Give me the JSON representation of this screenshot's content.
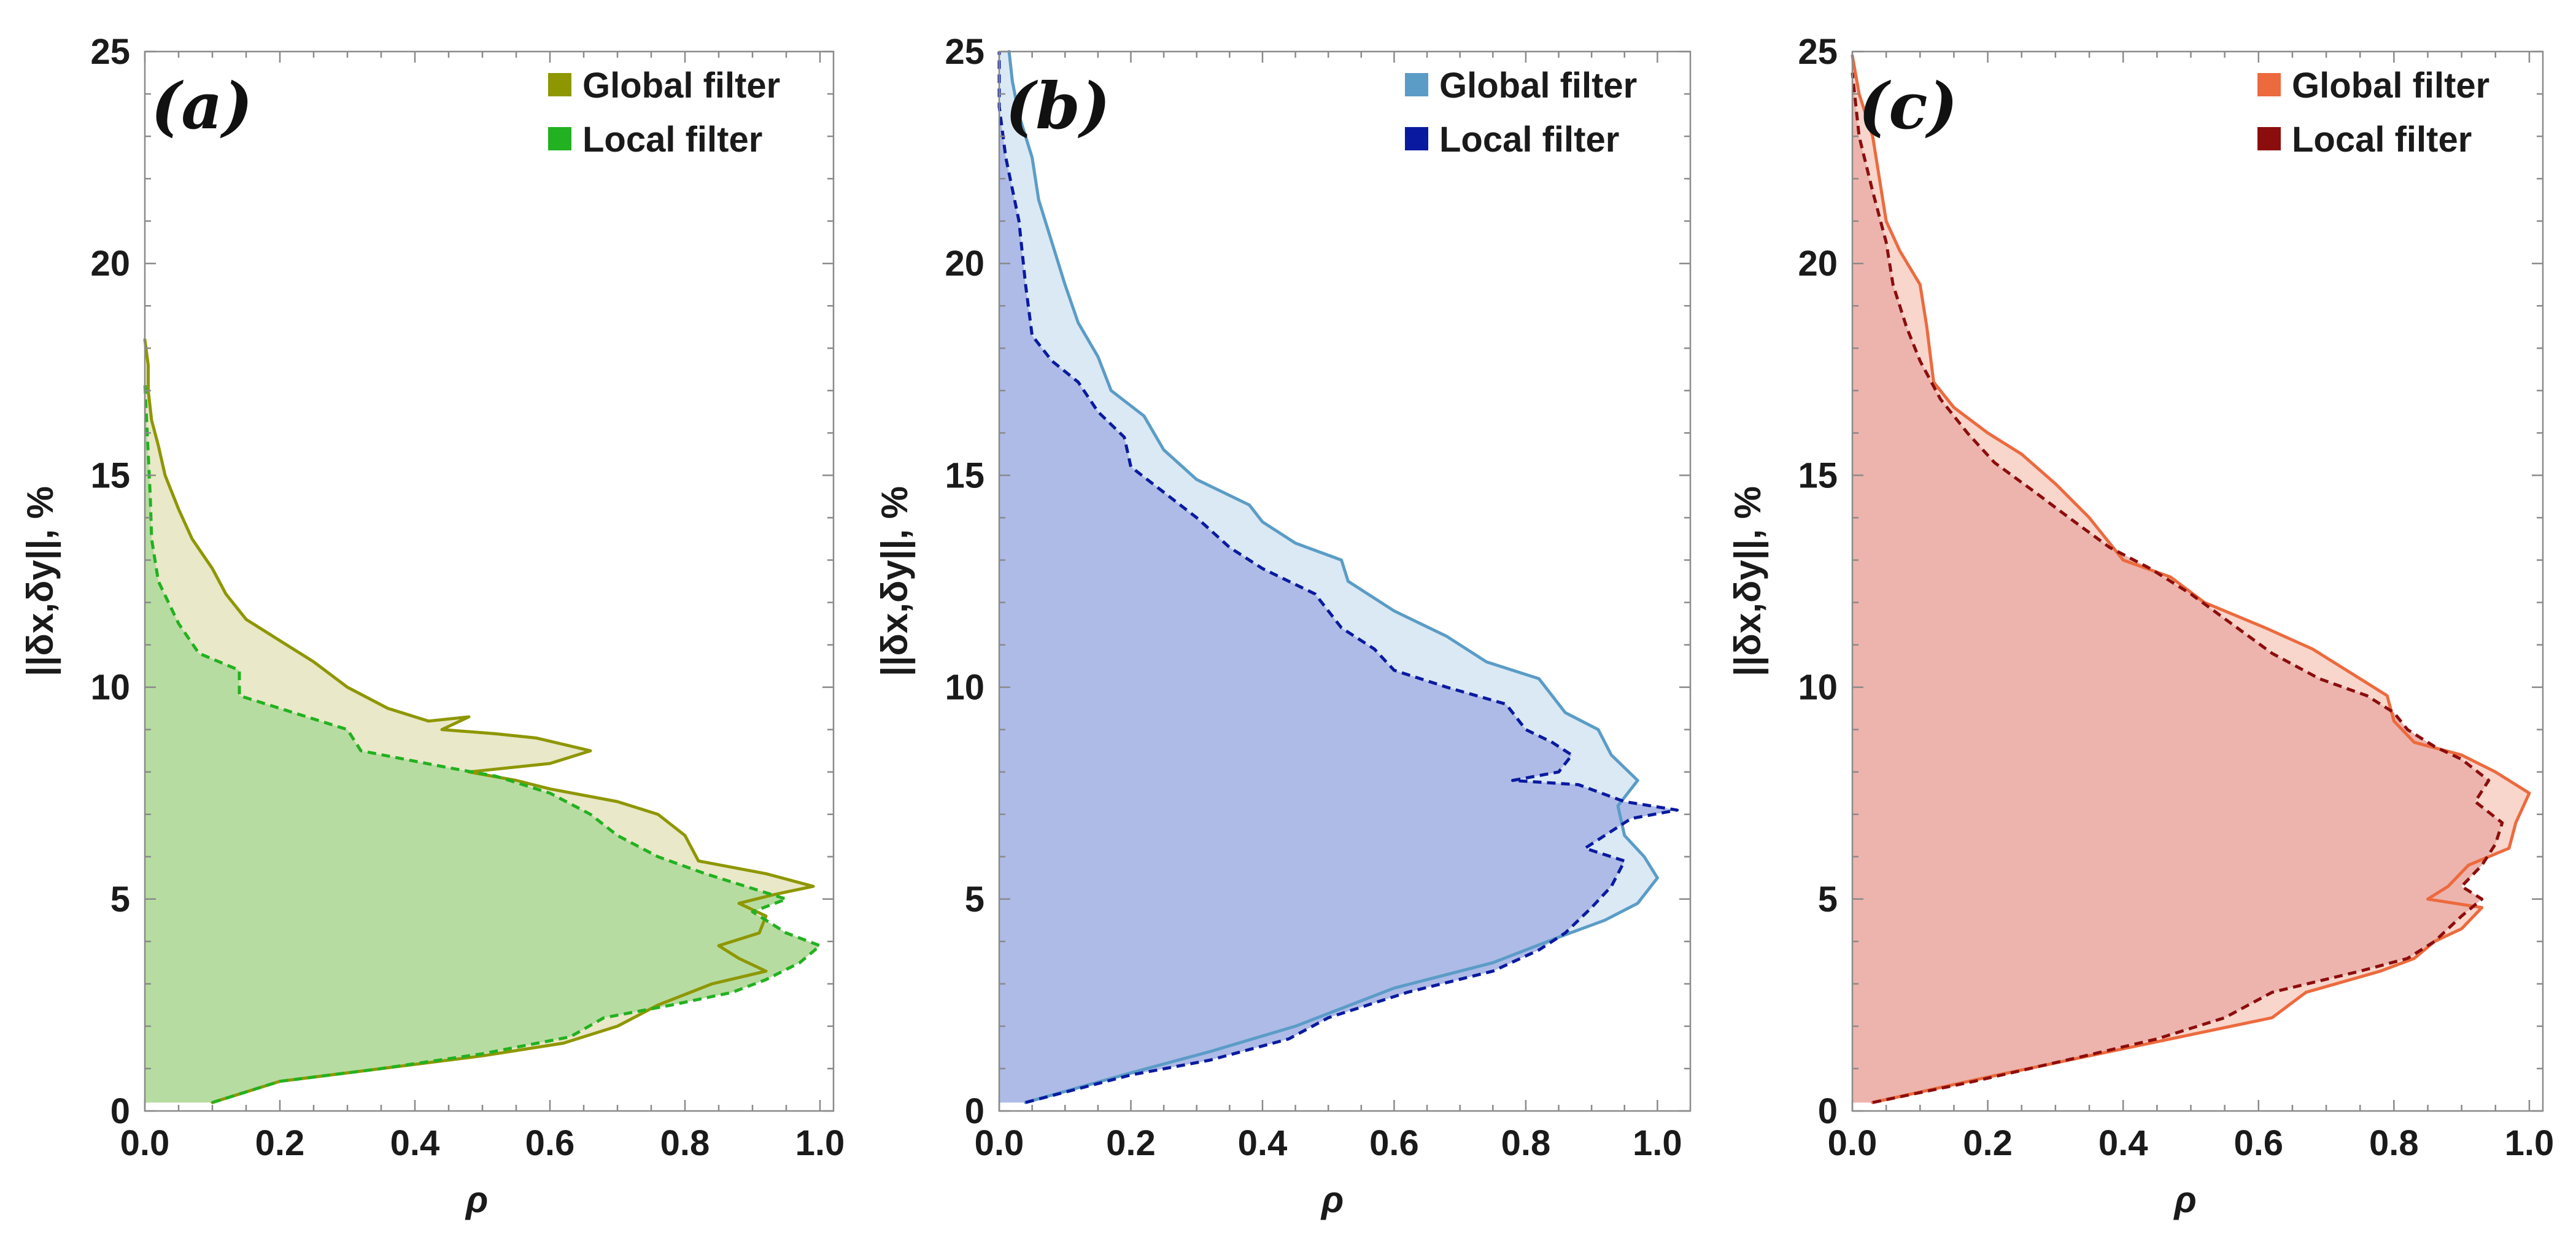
{
  "chart_data": [
    {
      "type": "area",
      "panel_label": "(a)",
      "xlabel": "ρ",
      "ylabel": "||δx,δy||, %",
      "xlim": [
        0,
        1.02
      ],
      "ylim": [
        0,
        25
      ],
      "x_ticks": [
        "0.0",
        "0.2",
        "0.4",
        "0.6",
        "0.8",
        "1.0"
      ],
      "y_ticks": [
        "0",
        "5",
        "10",
        "15",
        "20",
        "25"
      ],
      "colors": {
        "global": "#8e9700",
        "local": "#22b120",
        "global_fill": "#e9e8c9",
        "local_fill": "#b7dca1"
      },
      "series": [
        {
          "name": "Global filter",
          "style": "solid",
          "points": [
            [
              0.1,
              0.2
            ],
            [
              0.2,
              0.7
            ],
            [
              0.35,
              1.0
            ],
            [
              0.5,
              1.3
            ],
            [
              0.62,
              1.6
            ],
            [
              0.7,
              2.0
            ],
            [
              0.76,
              2.5
            ],
            [
              0.84,
              3.0
            ],
            [
              0.92,
              3.3
            ],
            [
              0.88,
              3.6
            ],
            [
              0.85,
              3.9
            ],
            [
              0.91,
              4.2
            ],
            [
              0.92,
              4.6
            ],
            [
              0.88,
              4.9
            ],
            [
              0.93,
              5.1
            ],
            [
              0.99,
              5.3
            ],
            [
              0.92,
              5.6
            ],
            [
              0.82,
              5.9
            ],
            [
              0.8,
              6.5
            ],
            [
              0.76,
              7.0
            ],
            [
              0.7,
              7.3
            ],
            [
              0.6,
              7.6
            ],
            [
              0.55,
              7.8
            ],
            [
              0.48,
              8.0
            ],
            [
              0.6,
              8.2
            ],
            [
              0.66,
              8.5
            ],
            [
              0.58,
              8.8
            ],
            [
              0.52,
              8.9
            ],
            [
              0.44,
              9.0
            ],
            [
              0.48,
              9.3
            ],
            [
              0.42,
              9.2
            ],
            [
              0.36,
              9.5
            ],
            [
              0.3,
              10.0
            ],
            [
              0.25,
              10.6
            ],
            [
              0.2,
              11.1
            ],
            [
              0.15,
              11.6
            ],
            [
              0.12,
              12.2
            ],
            [
              0.1,
              12.8
            ],
            [
              0.07,
              13.5
            ],
            [
              0.05,
              14.2
            ],
            [
              0.03,
              15.0
            ],
            [
              0.02,
              15.7
            ],
            [
              0.01,
              16.3
            ],
            [
              0.005,
              17.0
            ],
            [
              0.005,
              17.6
            ],
            [
              0.0,
              18.2
            ]
          ]
        },
        {
          "name": "Local filter",
          "style": "dashed",
          "points": [
            [
              0.1,
              0.2
            ],
            [
              0.2,
              0.7
            ],
            [
              0.35,
              1.0
            ],
            [
              0.5,
              1.35
            ],
            [
              0.63,
              1.75
            ],
            [
              0.68,
              2.2
            ],
            [
              0.78,
              2.5
            ],
            [
              0.87,
              2.8
            ],
            [
              0.92,
              3.1
            ],
            [
              0.97,
              3.5
            ],
            [
              1.0,
              3.9
            ],
            [
              0.95,
              4.2
            ],
            [
              0.9,
              4.7
            ],
            [
              0.95,
              5.0
            ],
            [
              0.89,
              5.3
            ],
            [
              0.83,
              5.6
            ],
            [
              0.76,
              6.0
            ],
            [
              0.7,
              6.5
            ],
            [
              0.66,
              7.0
            ],
            [
              0.6,
              7.5
            ],
            [
              0.52,
              7.9
            ],
            [
              0.45,
              8.1
            ],
            [
              0.32,
              8.5
            ],
            [
              0.3,
              9.0
            ],
            [
              0.2,
              9.5
            ],
            [
              0.14,
              9.8
            ],
            [
              0.14,
              10.4
            ],
            [
              0.08,
              10.8
            ],
            [
              0.05,
              11.5
            ],
            [
              0.02,
              12.5
            ],
            [
              0.01,
              13.5
            ],
            [
              0.008,
              14.5
            ],
            [
              0.005,
              15.5
            ],
            [
              0.002,
              16.5
            ],
            [
              0.0,
              17.2
            ]
          ]
        }
      ],
      "legend": [
        {
          "label": "Global filter",
          "swatch": "#8e9700"
        },
        {
          "label": "Local filter",
          "swatch": "#22b120"
        }
      ]
    },
    {
      "type": "area",
      "panel_label": "(b)",
      "xlabel": "ρ",
      "ylabel": "||δx,δy||, %",
      "xlim": [
        0,
        1.05
      ],
      "ylim": [
        0,
        25
      ],
      "x_ticks": [
        "0.0",
        "0.2",
        "0.4",
        "0.6",
        "0.8",
        "1.0"
      ],
      "y_ticks": [
        "0",
        "5",
        "10",
        "15",
        "20",
        "25"
      ],
      "colors": {
        "global": "#5b9cc7",
        "local": "#0a1aa0",
        "global_fill": "#dbe9f4",
        "local_fill": "#aebbe7"
      },
      "series": [
        {
          "name": "Global filter",
          "style": "solid",
          "points": [
            [
              0.04,
              0.2
            ],
            [
              0.2,
              0.9
            ],
            [
              0.32,
              1.4
            ],
            [
              0.45,
              2.0
            ],
            [
              0.6,
              2.9
            ],
            [
              0.75,
              3.5
            ],
            [
              0.85,
              4.1
            ],
            [
              0.92,
              4.5
            ],
            [
              0.97,
              4.9
            ],
            [
              1.0,
              5.5
            ],
            [
              0.98,
              6.0
            ],
            [
              0.95,
              6.5
            ],
            [
              0.94,
              7.2
            ],
            [
              0.97,
              7.8
            ],
            [
              0.93,
              8.4
            ],
            [
              0.91,
              9.0
            ],
            [
              0.86,
              9.4
            ],
            [
              0.82,
              10.2
            ],
            [
              0.74,
              10.6
            ],
            [
              0.68,
              11.2
            ],
            [
              0.6,
              11.8
            ],
            [
              0.53,
              12.5
            ],
            [
              0.52,
              13.0
            ],
            [
              0.45,
              13.4
            ],
            [
              0.4,
              13.9
            ],
            [
              0.38,
              14.3
            ],
            [
              0.3,
              14.9
            ],
            [
              0.25,
              15.6
            ],
            [
              0.22,
              16.4
            ],
            [
              0.17,
              17.0
            ],
            [
              0.15,
              17.8
            ],
            [
              0.12,
              18.6
            ],
            [
              0.1,
              19.5
            ],
            [
              0.08,
              20.5
            ],
            [
              0.06,
              21.5
            ],
            [
              0.05,
              22.5
            ],
            [
              0.03,
              23.5
            ],
            [
              0.02,
              24.3
            ],
            [
              0.015,
              25.0
            ]
          ]
        },
        {
          "name": "Local filter",
          "style": "dashed",
          "points": [
            [
              0.04,
              0.2
            ],
            [
              0.2,
              0.85
            ],
            [
              0.32,
              1.2
            ],
            [
              0.44,
              1.7
            ],
            [
              0.5,
              2.2
            ],
            [
              0.62,
              2.8
            ],
            [
              0.75,
              3.3
            ],
            [
              0.82,
              3.8
            ],
            [
              0.86,
              4.2
            ],
            [
              0.9,
              4.8
            ],
            [
              0.93,
              5.3
            ],
            [
              0.95,
              5.9
            ],
            [
              0.89,
              6.2
            ],
            [
              0.92,
              6.5
            ],
            [
              0.96,
              6.9
            ],
            [
              1.03,
              7.1
            ],
            [
              0.95,
              7.3
            ],
            [
              0.88,
              7.7
            ],
            [
              0.78,
              7.8
            ],
            [
              0.85,
              8.0
            ],
            [
              0.87,
              8.4
            ],
            [
              0.84,
              8.7
            ],
            [
              0.8,
              9.0
            ],
            [
              0.77,
              9.6
            ],
            [
              0.68,
              10.0
            ],
            [
              0.6,
              10.4
            ],
            [
              0.57,
              10.9
            ],
            [
              0.52,
              11.4
            ],
            [
              0.48,
              12.2
            ],
            [
              0.4,
              12.8
            ],
            [
              0.35,
              13.3
            ],
            [
              0.3,
              14.0
            ],
            [
              0.25,
              14.6
            ],
            [
              0.2,
              15.2
            ],
            [
              0.19,
              15.9
            ],
            [
              0.15,
              16.5
            ],
            [
              0.12,
              17.2
            ],
            [
              0.08,
              17.7
            ],
            [
              0.05,
              18.3
            ],
            [
              0.04,
              19.5
            ],
            [
              0.03,
              21.0
            ],
            [
              0.01,
              22.5
            ],
            [
              0.0,
              23.7
            ],
            [
              0.0,
              25.0
            ]
          ]
        }
      ],
      "legend": [
        {
          "label": "Global filter",
          "swatch": "#5b9cc7"
        },
        {
          "label": "Local filter",
          "swatch": "#0a1aa0"
        }
      ]
    },
    {
      "type": "area",
      "panel_label": "(c)",
      "xlabel": "ρ",
      "ylabel": "||δx,δy||, %",
      "xlim": [
        0,
        1.02
      ],
      "ylim": [
        0,
        25
      ],
      "x_ticks": [
        "0.0",
        "0.2",
        "0.4",
        "0.6",
        "0.8",
        "1.0"
      ],
      "y_ticks": [
        "0",
        "5",
        "10",
        "15",
        "20",
        "25"
      ],
      "colors": {
        "global": "#ec6a3e",
        "local": "#8c0d0d",
        "global_fill": "#f8d6cc",
        "local_fill": "#ecb4ad"
      },
      "series": [
        {
          "name": "Global filter",
          "style": "solid",
          "points": [
            [
              0.03,
              0.2
            ],
            [
              0.2,
              0.8
            ],
            [
              0.35,
              1.3
            ],
            [
              0.5,
              1.8
            ],
            [
              0.62,
              2.2
            ],
            [
              0.67,
              2.8
            ],
            [
              0.78,
              3.3
            ],
            [
              0.83,
              3.6
            ],
            [
              0.86,
              4.0
            ],
            [
              0.9,
              4.3
            ],
            [
              0.93,
              4.8
            ],
            [
              0.85,
              5.0
            ],
            [
              0.88,
              5.3
            ],
            [
              0.91,
              5.8
            ],
            [
              0.97,
              6.2
            ],
            [
              0.98,
              6.8
            ],
            [
              1.0,
              7.5
            ],
            [
              0.95,
              8.0
            ],
            [
              0.9,
              8.4
            ],
            [
              0.83,
              8.7
            ],
            [
              0.8,
              9.2
            ],
            [
              0.79,
              9.8
            ],
            [
              0.75,
              10.2
            ],
            [
              0.68,
              10.9
            ],
            [
              0.61,
              11.4
            ],
            [
              0.52,
              12.0
            ],
            [
              0.47,
              12.6
            ],
            [
              0.4,
              13.0
            ],
            [
              0.35,
              14.0
            ],
            [
              0.3,
              14.8
            ],
            [
              0.25,
              15.5
            ],
            [
              0.2,
              16.0
            ],
            [
              0.15,
              16.6
            ],
            [
              0.12,
              17.2
            ],
            [
              0.11,
              18.5
            ],
            [
              0.1,
              19.5
            ],
            [
              0.07,
              20.3
            ],
            [
              0.05,
              21.0
            ],
            [
              0.04,
              22.0
            ],
            [
              0.03,
              23.0
            ],
            [
              0.01,
              24.0
            ],
            [
              0.0,
              24.9
            ]
          ]
        },
        {
          "name": "Local filter",
          "style": "dashed",
          "points": [
            [
              0.03,
              0.2
            ],
            [
              0.18,
              0.7
            ],
            [
              0.33,
              1.25
            ],
            [
              0.45,
              1.7
            ],
            [
              0.55,
              2.2
            ],
            [
              0.62,
              2.8
            ],
            [
              0.75,
              3.3
            ],
            [
              0.82,
              3.6
            ],
            [
              0.86,
              4.0
            ],
            [
              0.9,
              4.6
            ],
            [
              0.93,
              5.0
            ],
            [
              0.9,
              5.3
            ],
            [
              0.93,
              5.8
            ],
            [
              0.95,
              6.3
            ],
            [
              0.96,
              6.8
            ],
            [
              0.92,
              7.3
            ],
            [
              0.94,
              7.8
            ],
            [
              0.9,
              8.3
            ],
            [
              0.86,
              8.6
            ],
            [
              0.82,
              9.0
            ],
            [
              0.8,
              9.4
            ],
            [
              0.76,
              9.8
            ],
            [
              0.69,
              10.2
            ],
            [
              0.62,
              10.8
            ],
            [
              0.56,
              11.5
            ],
            [
              0.5,
              12.2
            ],
            [
              0.44,
              12.8
            ],
            [
              0.38,
              13.3
            ],
            [
              0.32,
              14.0
            ],
            [
              0.27,
              14.6
            ],
            [
              0.21,
              15.3
            ],
            [
              0.17,
              16.0
            ],
            [
              0.13,
              16.8
            ],
            [
              0.1,
              17.7
            ],
            [
              0.08,
              18.5
            ],
            [
              0.06,
              19.5
            ],
            [
              0.05,
              20.5
            ],
            [
              0.03,
              21.7
            ],
            [
              0.01,
              23.0
            ],
            [
              0.0,
              24.5
            ]
          ]
        }
      ],
      "legend": [
        {
          "label": "Global filter",
          "swatch": "#ec6a3e"
        },
        {
          "label": "Local filter",
          "swatch": "#8c0d0d"
        }
      ]
    }
  ]
}
